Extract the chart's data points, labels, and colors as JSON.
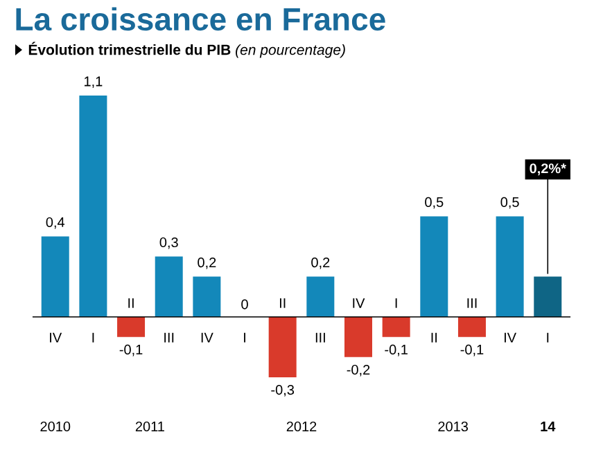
{
  "chart_data": {
    "type": "bar",
    "title": "La croissance en France",
    "subtitle": "**Évolution trimestrielle du PIB** *(en pourcentage)*",
    "categories": [
      "IV",
      "I",
      "II",
      "III",
      "IV",
      "I",
      "II",
      "III",
      "IV",
      "I",
      "II",
      "III",
      "IV",
      "I"
    ],
    "values": [
      0.4,
      1.1,
      -0.1,
      0.3,
      0.2,
      0,
      -0.3,
      0.2,
      -0.2,
      -0.1,
      0.5,
      -0.1,
      0.5,
      0.2
    ],
    "colors": [
      "#1388ba",
      "#1388ba",
      "#d93a2b",
      "#1388ba",
      "#1388ba",
      "#1388ba",
      "#d93a2b",
      "#1388ba",
      "#d93a2b",
      "#d93a2b",
      "#1388ba",
      "#d93a2b",
      "#1388ba",
      "#0f6585"
    ],
    "value_labels": [
      "0,4",
      "1,1",
      "-0,1",
      "0,3",
      "0,2",
      "0",
      "-0,3",
      "0,2",
      "-0,2",
      "-0,1",
      "0,5",
      "-0,1",
      "0,5",
      "0,2%*"
    ],
    "annotations": [
      "2010",
      "2011",
      "2012",
      "2013",
      "**14**"
    ],
    "relative": false
  }
}
